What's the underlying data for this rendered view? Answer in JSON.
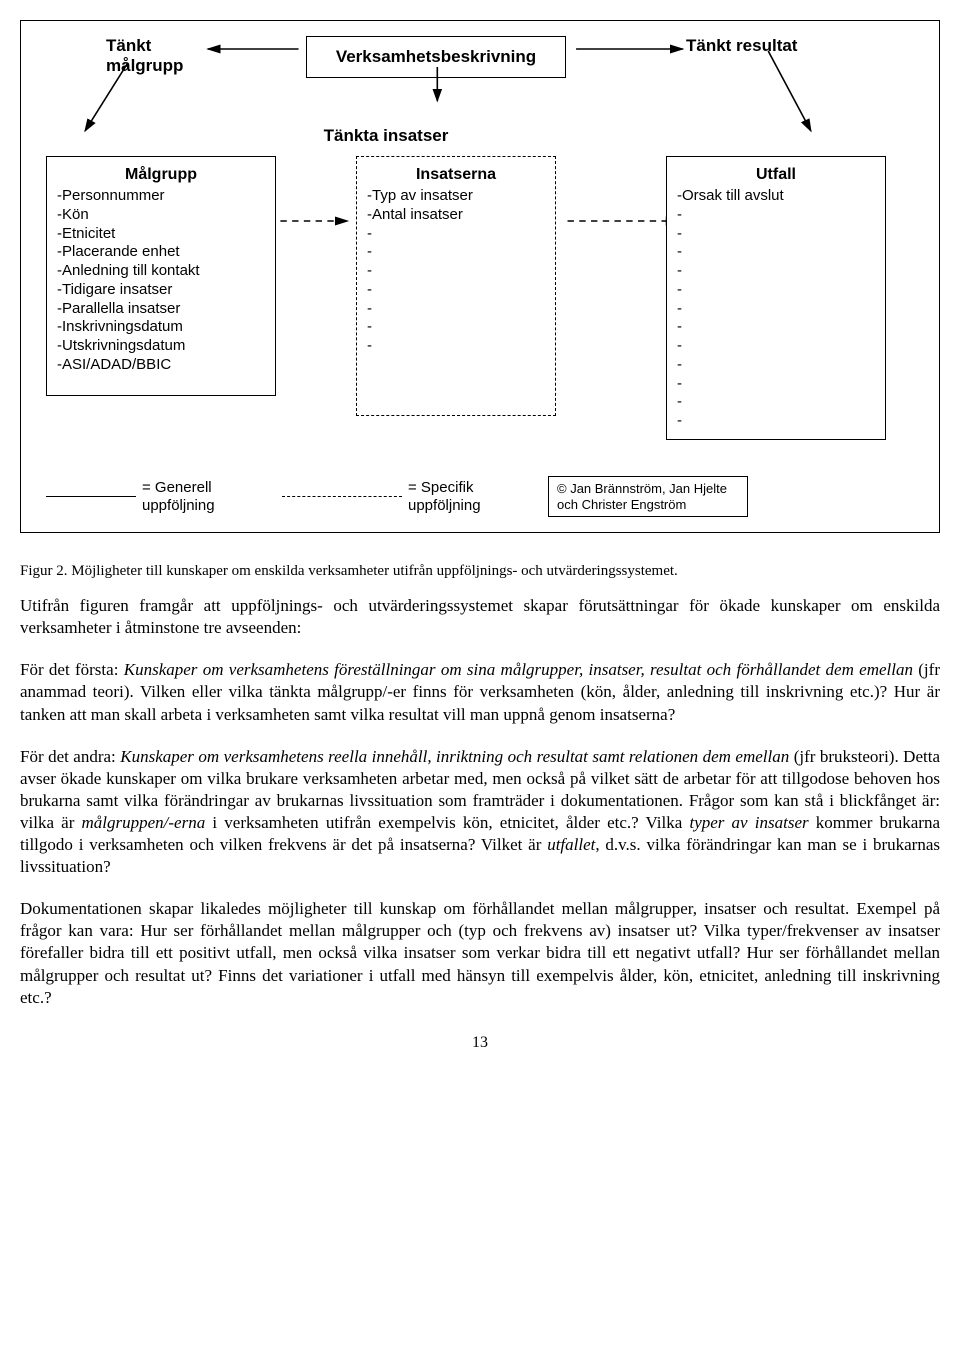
{
  "diagram": {
    "top_left": "Tänkt\nmålgrupp",
    "top_center": "Verksamhetsbeskrivning",
    "top_right": "Tänkt resultat",
    "sub_heading": "Tänkta insatser",
    "box_left": {
      "title": "Målgrupp",
      "items": [
        "-Personnummer",
        "-Kön",
        "-Etnicitet",
        "-Placerande enhet",
        "-Anledning till kontakt",
        "-Tidigare insatser",
        "-Parallella insatser",
        "-Inskrivningsdatum",
        "-Utskrivningsdatum",
        "-ASI/ADAD/BBIC"
      ]
    },
    "box_mid": {
      "title": "Insatserna",
      "items": [
        "-Typ av insatser",
        "-Antal insatser",
        "-",
        "-",
        "-",
        "-",
        "-",
        "-",
        "-"
      ]
    },
    "box_right": {
      "title": "Utfall",
      "items": [
        "-Orsak till avslut",
        "-",
        "-",
        "-",
        "-",
        "-",
        "-",
        "-",
        "-",
        "-",
        "-",
        "-",
        "-"
      ]
    },
    "legend_solid": "= Generell uppföljning",
    "legend_dashed": "= Specifik uppföljning",
    "copyright": "© Jan Brännström, Jan Hjelte och Christer Engström"
  },
  "caption": "Figur 2. Möjligheter till kunskaper om enskilda verksamheter utifrån uppföljnings- och utvärderingssystemet.",
  "para1": "Utifrån figuren framgår att uppföljnings- och utvärderingssystemet skapar förutsättningar för ökade kunskaper om enskilda verksamheter i åtminstone tre avseenden:",
  "para2_html": "För det första: <em>Kunskaper om verksamhetens föreställningar om sina målgrupper, insatser, resultat och förhållandet dem emellan</em> (jfr anammad teori). Vilken eller vilka tänkta målgrupp/-er finns för verksamheten (kön, ålder, anledning till inskrivning etc.)? Hur är tanken att man skall arbeta i verksamheten samt vilka resultat vill man uppnå genom insatserna?",
  "para3_html": "För det andra: <em>Kunskaper om verksamhetens reella innehåll, inriktning och resultat samt relationen dem emellan</em> (jfr bruksteori). Detta avser ökade kunskaper om vilka brukare verksamheten arbetar med, men också på vilket sätt de arbetar för att tillgodose behoven hos brukarna samt vilka förändringar av brukarnas livssituation som framträder i dokumentationen. Frågor som kan stå i blickfånget är: vilka är <em>målgruppen/-erna</em> i verksamheten utifrån exempelvis kön, etnicitet, ålder etc.? Vilka <em>typer av insatser</em> kommer brukarna tillgodo i verksamheten och vilken frekvens är det på insatserna? Vilket är <em>utfallet</em>, d.v.s. vilka förändringar kan man se i brukarnas livssituation?",
  "para4": "Dokumentationen skapar likaledes möjligheter till kunskap om förhållandet mellan målgrupper, insatser och resultat. Exempel på frågor kan vara: Hur ser förhållandet mellan målgrupper och (typ och frekvens av) insatser ut? Vilka typer/frekvenser av insatser förefaller bidra till ett positivt utfall, men också vilka insatser som verkar bidra till ett negativt utfall? Hur ser förhållandet mellan målgrupper och resultat ut? Finns det variationer i utfall med hänsyn till exempelvis ålder, kön, etnicitet, anledning till inskrivning etc.?",
  "page_number": "13"
}
